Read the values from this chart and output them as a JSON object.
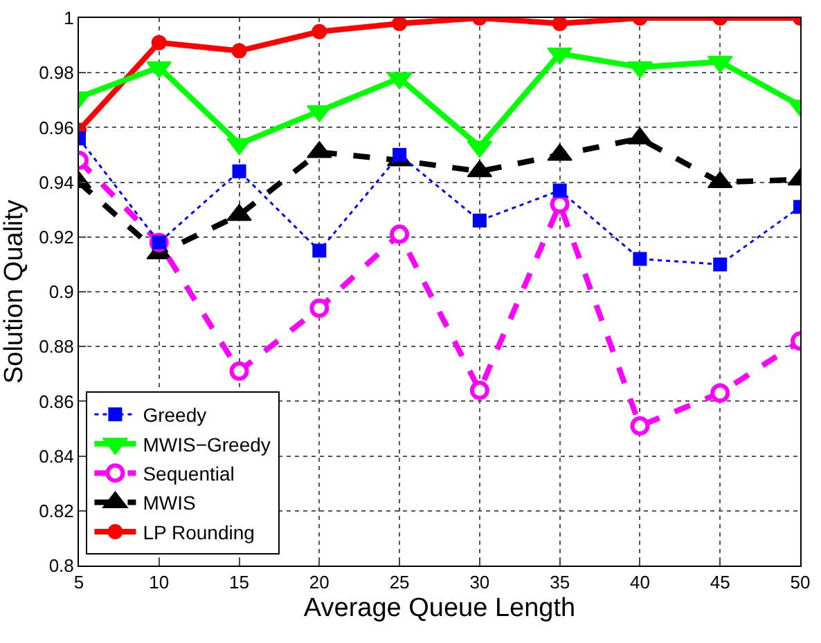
{
  "chart_data": {
    "type": "line",
    "xlabel": "Average Queue Length",
    "ylabel": "Solution Quality",
    "x": [
      5,
      10,
      15,
      20,
      25,
      30,
      35,
      40,
      45,
      50
    ],
    "series": [
      {
        "name": "Greedy",
        "color": "#0000ff",
        "marker": "square",
        "line_style": "dotted",
        "values": [
          0.956,
          0.918,
          0.944,
          0.915,
          0.95,
          0.926,
          0.937,
          0.912,
          0.91,
          0.931
        ]
      },
      {
        "name": "MWIS−Greedy",
        "color": "#00ff00",
        "marker": "triangle",
        "line_style": "solid",
        "values": [
          0.971,
          0.982,
          0.954,
          0.966,
          0.978,
          0.953,
          0.987,
          0.982,
          0.984,
          0.968
        ]
      },
      {
        "name": "Sequential",
        "color": "#ff00ff",
        "marker": "circle",
        "line_style": "dashed",
        "values": [
          0.948,
          0.918,
          0.871,
          0.894,
          0.921,
          0.864,
          0.932,
          0.851,
          0.863,
          0.882
        ]
      },
      {
        "name": "MWIS",
        "color": "#000000",
        "marker": "triangle",
        "line_style": "dashed",
        "values": [
          0.94,
          0.914,
          0.928,
          0.951,
          0.948,
          0.944,
          0.95,
          0.956,
          0.94,
          0.941
        ]
      },
      {
        "name": "LP Rounding",
        "color": "#ff0000",
        "marker": "circle",
        "line_style": "solid",
        "values": [
          0.959,
          0.991,
          0.988,
          0.995,
          0.998,
          1.0,
          0.998,
          1.0,
          1.0,
          1.0
        ]
      }
    ],
    "xlim": [
      5,
      50
    ],
    "xticks": [
      5,
      10,
      15,
      20,
      25,
      30,
      35,
      40,
      45,
      50
    ],
    "ylim": [
      0.8,
      1
    ],
    "yticks": [
      0.8,
      0.82,
      0.84,
      0.86,
      0.88,
      0.9,
      0.92,
      0.94,
      0.96,
      0.98,
      1
    ],
    "grid": true,
    "legend": "bottom left"
  }
}
